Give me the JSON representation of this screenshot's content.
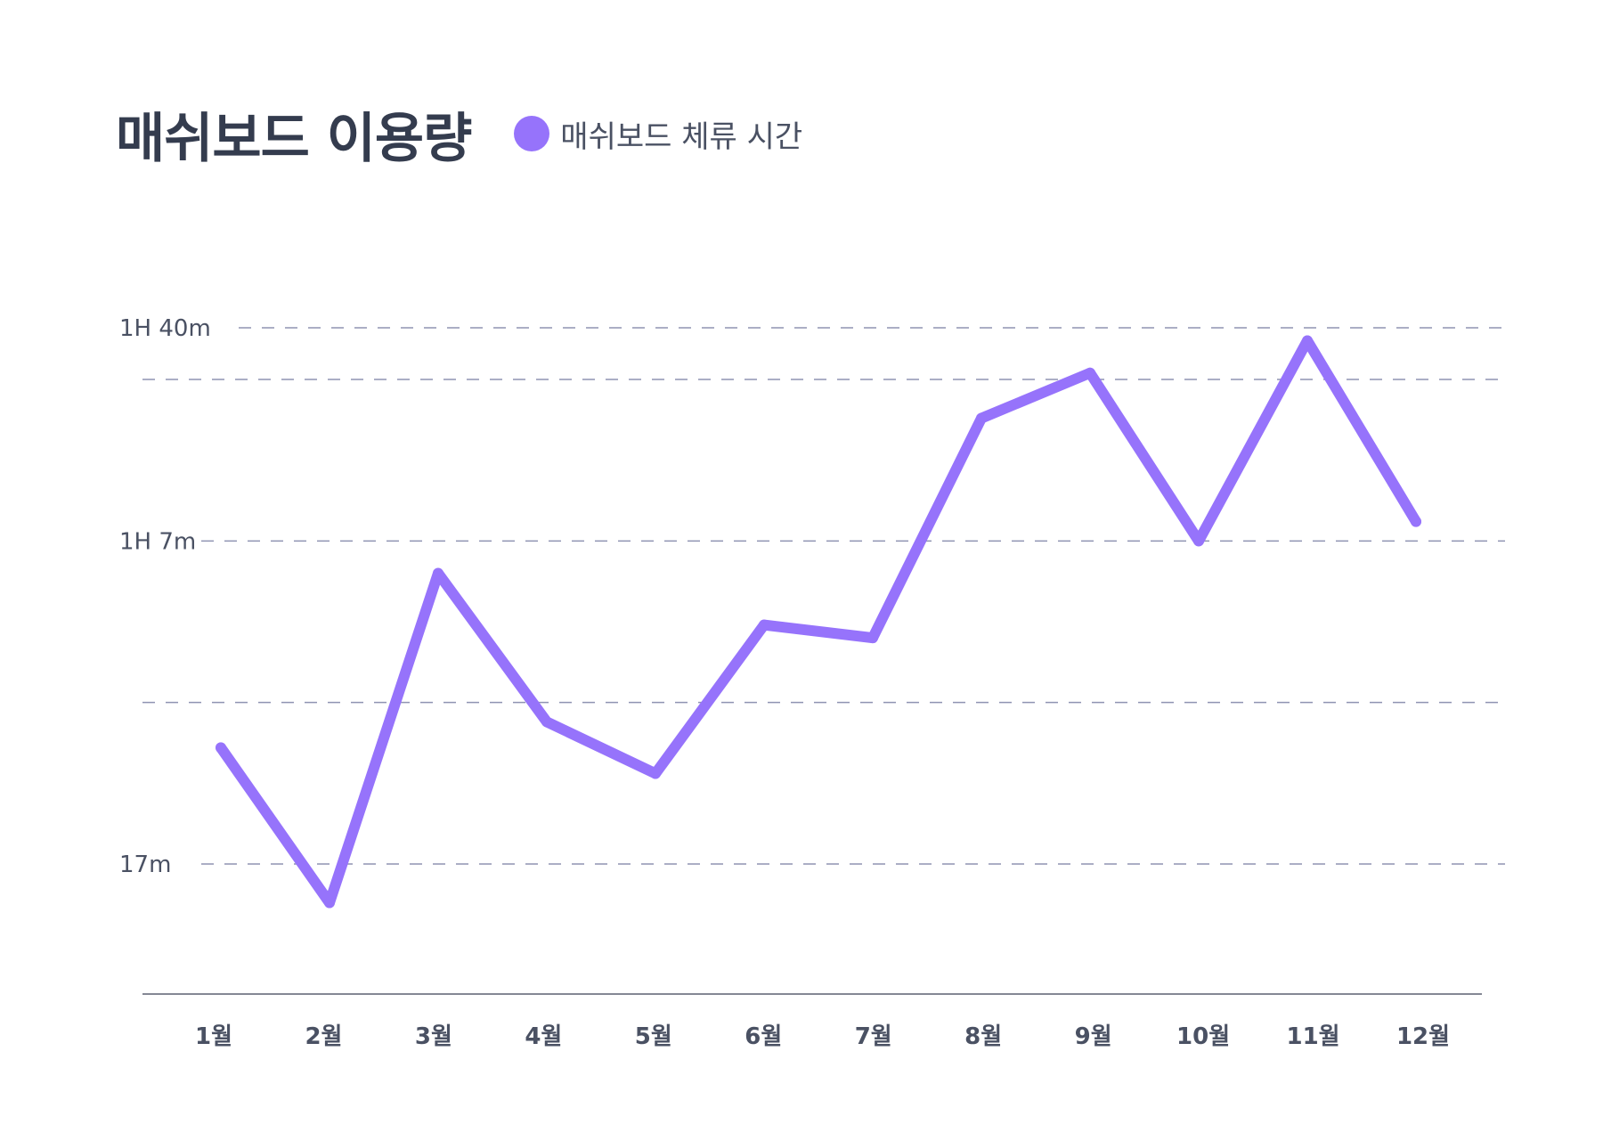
{
  "colors": {
    "series": "#9673fb",
    "text": "#4a5163",
    "title": "#343c4e",
    "grid": "#8f93b2",
    "axis": "#5b6070"
  },
  "chart_data": {
    "type": "line",
    "title": "매쉬보드 이용량",
    "xlabel": "",
    "ylabel": "",
    "x": [
      "1월",
      "2월",
      "3월",
      "4월",
      "5월",
      "6월",
      "7월",
      "8월",
      "9월",
      "10월",
      "11월",
      "12월"
    ],
    "y_ticks": [
      {
        "value": 17,
        "label": "17m"
      },
      {
        "value": 67,
        "label": "1H 7m"
      },
      {
        "value": 100,
        "label": "1H 40m"
      }
    ],
    "gridlines": [
      17,
      42,
      67,
      92,
      100
    ],
    "ylim": [
      -7,
      100
    ],
    "grid": true,
    "legend_position": "top-left",
    "series": [
      {
        "name": "매쉬보드 체류 시간",
        "values": [
          35,
          11,
          62,
          39,
          31,
          54,
          52,
          86,
          93,
          67,
          98,
          70
        ]
      }
    ]
  }
}
